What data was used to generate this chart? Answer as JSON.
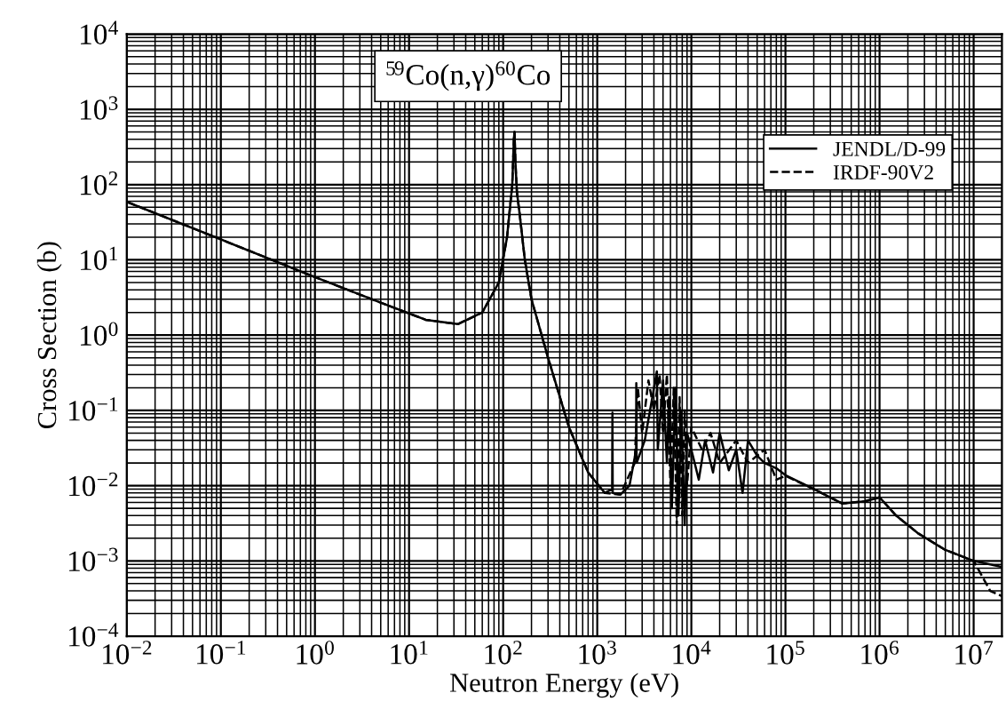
{
  "chart_data": {
    "type": "line",
    "title": "$^{59}$Co(n,γ)$^{60}$Co",
    "xlabel": "Neutron Energy (eV)",
    "ylabel": "Cross Section (b)",
    "log": "xy",
    "grid": true,
    "legend": "top right",
    "xlim": [
      0.01,
      20000000
    ],
    "ylim": [
      0.0001,
      10000
    ],
    "xticks": [
      {
        "value": 0.01,
        "label": "10$^{−2}$"
      },
      {
        "value": 0.1,
        "label": "10$^{−1}$"
      },
      {
        "value": 1,
        "label": "10$^{0}$"
      },
      {
        "value": 10,
        "label": "10$^{1}$"
      },
      {
        "value": 100,
        "label": "10$^{2}$"
      },
      {
        "value": 1000,
        "label": "10$^{3}$"
      },
      {
        "value": 10000,
        "label": "10$^{4}$"
      },
      {
        "value": 100000,
        "label": "10$^{5}$"
      },
      {
        "value": 1000000,
        "label": "10$^{6}$"
      },
      {
        "value": 10000000,
        "label": "10$^{7}$"
      }
    ],
    "yticks": [
      {
        "value": 0.0001,
        "label": "10$^{−4}$"
      },
      {
        "value": 0.001,
        "label": "10$^{−3}$"
      },
      {
        "value": 0.01,
        "label": "10$^{−2}$"
      },
      {
        "value": 0.1,
        "label": "10$^{−1}$"
      },
      {
        "value": 1,
        "label": "10$^{0}$"
      },
      {
        "value": 10,
        "label": "10$^{1}$"
      },
      {
        "value": 100,
        "label": "10$^{2}$"
      },
      {
        "value": 1000,
        "label": "10$^{3}$"
      },
      {
        "value": 10000,
        "label": "10$^{4}$"
      }
    ],
    "series": [
      {
        "name": "JENDL/D-99",
        "color": "#000000",
        "line_style": "solid",
        "x": [
          0.01,
          0.1,
          1,
          5,
          15,
          33,
          60,
          90,
          110,
          125,
          130,
          132,
          135,
          140,
          150,
          170,
          200,
          300,
          500,
          800,
          1200,
          1440,
          1450,
          1460,
          1760,
          2200,
          2590,
          2600,
          2620,
          3200,
          4300,
          4400,
          5000,
          5500,
          5800,
          6200,
          6800,
          7300,
          7800,
          8500,
          9000,
          10000,
          12000,
          14000,
          17000,
          20000,
          25000,
          30000,
          35000,
          40000,
          50000,
          60000,
          80000,
          100000,
          200000,
          400000,
          700000,
          1000000,
          1500000,
          2600000,
          5000000,
          10000000,
          20000000
        ],
        "values": [
          59,
          18.7,
          5.9,
          2.7,
          1.6,
          1.4,
          2.0,
          5,
          20,
          100,
          400,
          500,
          200,
          80,
          40,
          10,
          3,
          0.5,
          0.06,
          0.015,
          0.008,
          0.009,
          0.093,
          0.008,
          0.0076,
          0.01,
          0.03,
          0.23,
          0.02,
          0.04,
          0.33,
          0.03,
          0.25,
          0.02,
          0.15,
          0.005,
          0.2,
          0.004,
          0.1,
          0.003,
          0.05,
          0.03,
          0.012,
          0.04,
          0.015,
          0.05,
          0.016,
          0.03,
          0.008,
          0.04,
          0.025,
          0.02,
          0.017,
          0.0138,
          0.009,
          0.0058,
          0.0062,
          0.007,
          0.004,
          0.0023,
          0.0014,
          0.001,
          0.00083
        ]
      },
      {
        "name": "IRDF-90V2",
        "color": "#000000",
        "line_style": "dashed",
        "x": [
          0.01,
          0.1,
          1,
          5,
          15,
          33,
          60,
          90,
          110,
          125,
          130,
          132,
          135,
          140,
          150,
          170,
          200,
          300,
          500,
          800,
          1200,
          1760,
          2500,
          2700,
          3000,
          3500,
          4000,
          4600,
          5000,
          5500,
          6000,
          6500,
          7000,
          7500,
          8000,
          8500,
          9000,
          10000,
          13000,
          16000,
          20000,
          30000,
          40000,
          60000,
          80000,
          100000,
          200000,
          400000,
          700000,
          1000000,
          1500000,
          2600000,
          5000000,
          10000000,
          15000000,
          20000000
        ],
        "values": [
          59,
          18.7,
          5.9,
          2.7,
          1.6,
          1.4,
          2.0,
          5,
          20,
          100,
          400,
          500,
          200,
          80,
          40,
          10,
          3,
          0.5,
          0.06,
          0.015,
          0.008,
          0.0076,
          0.02,
          0.2,
          0.05,
          0.25,
          0.1,
          0.3,
          0.05,
          0.3,
          0.01,
          0.2,
          0.003,
          0.15,
          0.004,
          0.1,
          0.01,
          0.06,
          0.03,
          0.05,
          0.02,
          0.04,
          0.02,
          0.03,
          0.012,
          0.0135,
          0.009,
          0.0058,
          0.0062,
          0.007,
          0.004,
          0.0023,
          0.0014,
          0.001,
          0.0004,
          0.00034
        ]
      }
    ]
  }
}
